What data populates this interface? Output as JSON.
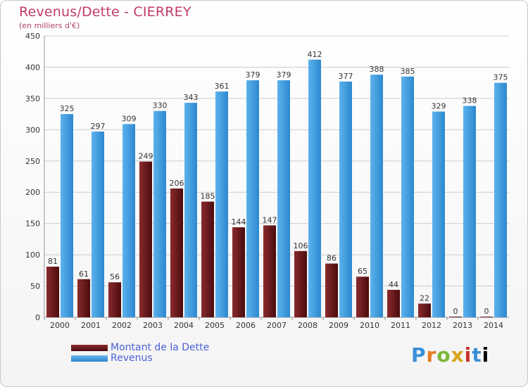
{
  "header": {
    "title": "Revenus/Dette - CIERREY",
    "subtitle": "(en milliers d'€)"
  },
  "legend": {
    "debt_label": "Montant de la Dette",
    "revenue_label": "Revenus"
  },
  "brand": {
    "text": "Proxiti"
  },
  "colors": {
    "debt": "#6b1518",
    "revenue": "#3c9de2",
    "axis_text": "#333333",
    "grid": "#cccccc"
  },
  "chart_data": {
    "type": "bar",
    "title": "Revenus/Dette - CIERREY",
    "subtitle": "(en milliers d'€)",
    "categories": [
      "2000",
      "2001",
      "2002",
      "2003",
      "2004",
      "2005",
      "2006",
      "2007",
      "2008",
      "2009",
      "2010",
      "2011",
      "2012",
      "2013",
      "2014"
    ],
    "series": [
      {
        "name": "Montant de la Dette",
        "values": [
          81,
          61,
          56,
          249,
          206,
          185,
          144,
          147,
          106,
          86,
          65,
          44,
          22,
          0,
          0
        ]
      },
      {
        "name": "Revenus",
        "values": [
          325,
          297,
          309,
          330,
          343,
          361,
          379,
          379,
          412,
          377,
          388,
          385,
          329,
          338,
          375
        ]
      }
    ],
    "ylim": [
      0,
      450
    ],
    "yticks": [
      0,
      50,
      100,
      150,
      200,
      250,
      300,
      350,
      400,
      450
    ],
    "grid": true,
    "legend_position": "bottom-left"
  }
}
